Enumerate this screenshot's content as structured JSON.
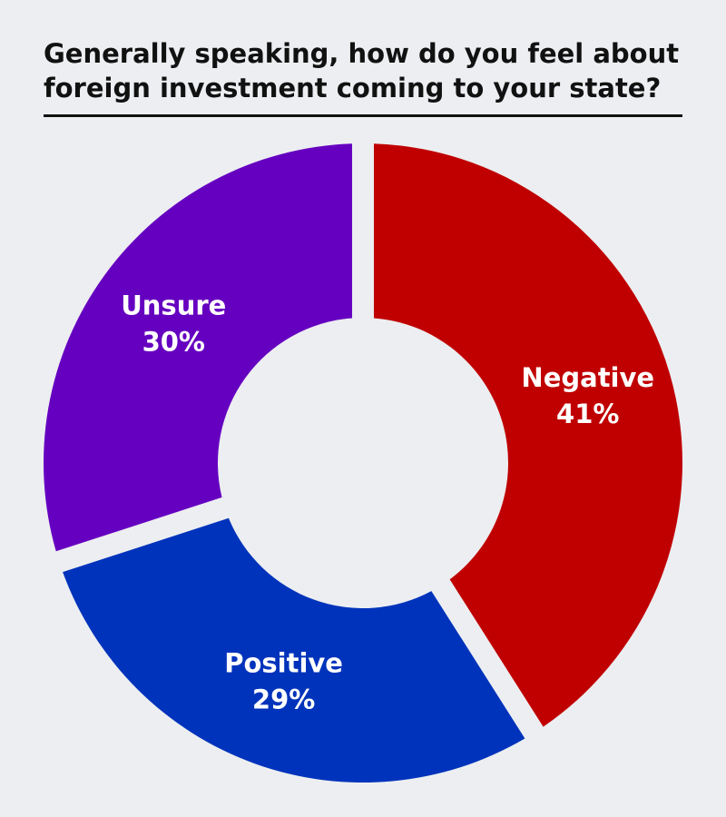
{
  "chart_data": {
    "type": "donut",
    "title": "Generally speaking, how do you feel about foreign investment coming to your state?",
    "categories": [
      "Negative",
      "Positive",
      "Unsure"
    ],
    "values": [
      41,
      29,
      30
    ],
    "value_labels": [
      "41%",
      "29%",
      "30%"
    ],
    "colors": [
      "#c00000",
      "#0033bb",
      "#6600c0"
    ]
  }
}
